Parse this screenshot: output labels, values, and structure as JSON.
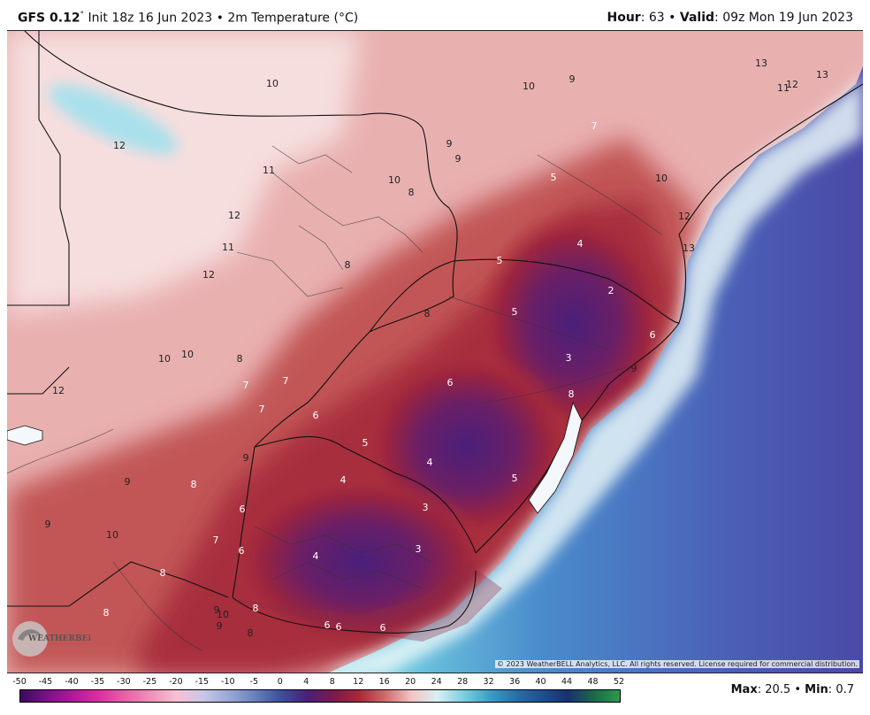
{
  "header": {
    "model": "GFS 0.12",
    "init": "Init 18z 16 Jun 2023",
    "separator": "•",
    "field": "2m Temperature (°C)",
    "hour_label": "Hour",
    "hour_value": "63",
    "valid_label": "Valid",
    "valid_value": "09z Mon 19 Jun 2023"
  },
  "map": {
    "copyright": "© 2023 WeatherBELL Analytics, LLC. All rights reserved. License required for commercial distribution.",
    "logo_text": "WEATHERBELL",
    "contour_labels": [
      {
        "text": "10",
        "white": false
      },
      {
        "text": "12",
        "white": false
      },
      {
        "text": "13",
        "white": false
      },
      {
        "text": "11",
        "white": false
      },
      {
        "text": "12",
        "white": false
      },
      {
        "text": "13",
        "white": false
      },
      {
        "text": "12",
        "white": false
      },
      {
        "text": "11",
        "white": false
      },
      {
        "text": "12",
        "white": false
      },
      {
        "text": "10",
        "white": false
      },
      {
        "text": "9",
        "white": false
      },
      {
        "text": "9",
        "white": false
      },
      {
        "text": "9",
        "white": false
      },
      {
        "text": "10",
        "white": false
      },
      {
        "text": "8",
        "white": false
      },
      {
        "text": "7",
        "white": true
      },
      {
        "text": "5",
        "white": true
      },
      {
        "text": "10",
        "white": false
      },
      {
        "text": "12",
        "white": false
      },
      {
        "text": "13",
        "white": false
      },
      {
        "text": "4",
        "white": true
      },
      {
        "text": "5",
        "white": true
      },
      {
        "text": "2",
        "white": true
      },
      {
        "text": "8",
        "white": false
      },
      {
        "text": "5",
        "white": true
      },
      {
        "text": "6",
        "white": true
      },
      {
        "text": "3",
        "white": true
      },
      {
        "text": "9",
        "white": false
      },
      {
        "text": "10",
        "white": false
      },
      {
        "text": "10",
        "white": false
      },
      {
        "text": "8",
        "white": false
      },
      {
        "text": "7",
        "white": true
      },
      {
        "text": "7",
        "white": true
      },
      {
        "text": "12",
        "white": false
      },
      {
        "text": "6",
        "white": true
      },
      {
        "text": "8",
        "white": true
      },
      {
        "text": "7",
        "white": true
      },
      {
        "text": "6",
        "white": true
      },
      {
        "text": "5",
        "white": true
      },
      {
        "text": "4",
        "white": true
      },
      {
        "text": "9",
        "white": false
      },
      {
        "text": "4",
        "white": true
      },
      {
        "text": "5",
        "white": true
      },
      {
        "text": "9",
        "white": false
      },
      {
        "text": "8",
        "white": true
      },
      {
        "text": "6",
        "white": true
      },
      {
        "text": "3",
        "white": true
      },
      {
        "text": "9",
        "white": false
      },
      {
        "text": "10",
        "white": false
      },
      {
        "text": "7",
        "white": true
      },
      {
        "text": "6",
        "white": true
      },
      {
        "text": "4",
        "white": true
      },
      {
        "text": "3",
        "white": true
      },
      {
        "text": "8",
        "white": true
      },
      {
        "text": "8",
        "white": true
      },
      {
        "text": "9",
        "white": false
      },
      {
        "text": "10",
        "white": false
      },
      {
        "text": "9",
        "white": false
      },
      {
        "text": "8",
        "white": true
      },
      {
        "text": "8",
        "white": false
      },
      {
        "text": "6",
        "white": true
      },
      {
        "text": "6",
        "white": true
      },
      {
        "text": "6",
        "white": true
      },
      {
        "text": "11",
        "white": false
      },
      {
        "text": "8",
        "white": false
      }
    ]
  },
  "legend": {
    "ticks": [
      "-50",
      "-45",
      "-40",
      "-35",
      "-30",
      "-25",
      "-20",
      "-15",
      "-10",
      "-5",
      "0",
      "4",
      "8",
      "12",
      "16",
      "20",
      "24",
      "28",
      "32",
      "36",
      "40",
      "44",
      "48",
      "52"
    ],
    "colors": [
      "#3a0a5e",
      "#7a1088",
      "#b0189c",
      "#d8309e",
      "#e860a8",
      "#f090b8",
      "#f8c0d4",
      "#c8c8e8",
      "#9aa8d8",
      "#6880c0",
      "#3c4f9c",
      "#4a1f7a",
      "#7a1a4a",
      "#a82838",
      "#d06a6a",
      "#f2c4c4",
      "#d8f0f4",
      "#7ad0e0",
      "#3aa0c8",
      "#2870a8",
      "#1e5090",
      "#183070",
      "#1a6a4a",
      "#2a9a4a"
    ]
  },
  "stats": {
    "max_label": "Max",
    "max_value": "20.5",
    "min_label": "Min",
    "min_value": "0.7"
  }
}
